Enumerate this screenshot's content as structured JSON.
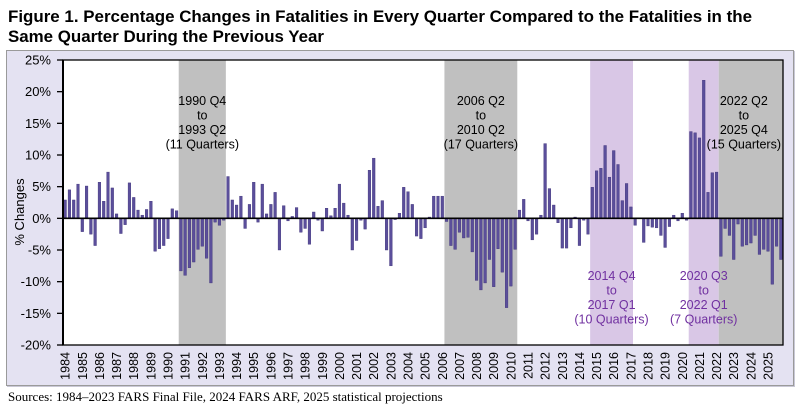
{
  "figure": {
    "title_line_1": "Figure 1. Percentage Changes in Fatalities in Every Quarter Compared to the Fatalities in the",
    "title_line_2": "Same Quarter During the Previous Year",
    "source": "Sources: 1984–2023 FARS Final File, 2024 FARS ARF, 2025 statistical projections"
  },
  "colors": {
    "panel_background": "#e4e2f2",
    "plot_background": "#ffffff",
    "bar": "#5b4f9b",
    "bar_edge": "#3d3178",
    "gray_shade": "#c0c0c0",
    "purple_shade": "#d9c7e6",
    "purple_text": "#7030a0",
    "axis": "#000000"
  },
  "chart_data": {
    "type": "bar",
    "title": "Figure 1. Percentage Changes in Fatalities in Every Quarter Compared to the Fatalities in the Same Quarter During the Previous Year",
    "xlabel": "",
    "ylabel": "% Changes",
    "ylim": [
      -20,
      25
    ],
    "yticks": [
      -20,
      -15,
      -10,
      -5,
      0,
      5,
      10,
      15,
      20,
      25
    ],
    "ytick_labels": [
      "-20%",
      "-15%",
      "-10%",
      "-5%",
      "0%",
      "5%",
      "10%",
      "15%",
      "20%",
      "25%"
    ],
    "xtick_labels": [
      "1984",
      "1985",
      "1986",
      "1987",
      "1988",
      "1989",
      "1990",
      "1991",
      "1992",
      "1993",
      "1994",
      "1995",
      "1996",
      "1997",
      "1998",
      "1999",
      "2000",
      "2001",
      "2002",
      "2003",
      "2004",
      "2005",
      "2006",
      "2007",
      "2008",
      "2009",
      "2010",
      "2011",
      "2012",
      "2013",
      "2014",
      "2015",
      "2016",
      "2017",
      "2018",
      "2019",
      "2020",
      "2021",
      "2022",
      "2023",
      "2024",
      "2025"
    ],
    "grid": false,
    "legend": "none",
    "categories": [
      "1984 Q1",
      "1984 Q2",
      "1984 Q3",
      "1984 Q4",
      "1985 Q1",
      "1985 Q2",
      "1985 Q3",
      "1985 Q4",
      "1986 Q1",
      "1986 Q2",
      "1986 Q3",
      "1986 Q4",
      "1987 Q1",
      "1987 Q2",
      "1987 Q3",
      "1987 Q4",
      "1988 Q1",
      "1988 Q2",
      "1988 Q3",
      "1988 Q4",
      "1989 Q1",
      "1989 Q2",
      "1989 Q3",
      "1989 Q4",
      "1990 Q1",
      "1990 Q2",
      "1990 Q3",
      "1990 Q4",
      "1991 Q1",
      "1991 Q2",
      "1991 Q3",
      "1991 Q4",
      "1992 Q1",
      "1992 Q2",
      "1992 Q3",
      "1992 Q4",
      "1993 Q1",
      "1993 Q2",
      "1993 Q3",
      "1993 Q4",
      "1994 Q1",
      "1994 Q2",
      "1994 Q3",
      "1994 Q4",
      "1995 Q1",
      "1995 Q2",
      "1995 Q3",
      "1995 Q4",
      "1996 Q1",
      "1996 Q2",
      "1996 Q3",
      "1996 Q4",
      "1997 Q1",
      "1997 Q2",
      "1997 Q3",
      "1997 Q4",
      "1998 Q1",
      "1998 Q2",
      "1998 Q3",
      "1998 Q4",
      "1999 Q1",
      "1999 Q2",
      "1999 Q3",
      "1999 Q4",
      "2000 Q1",
      "2000 Q2",
      "2000 Q3",
      "2000 Q4",
      "2001 Q1",
      "2001 Q2",
      "2001 Q3",
      "2001 Q4",
      "2002 Q1",
      "2002 Q2",
      "2002 Q3",
      "2002 Q4",
      "2003 Q1",
      "2003 Q2",
      "2003 Q3",
      "2003 Q4",
      "2004 Q1",
      "2004 Q2",
      "2004 Q3",
      "2004 Q4",
      "2005 Q1",
      "2005 Q2",
      "2005 Q3",
      "2005 Q4",
      "2006 Q1",
      "2006 Q2",
      "2006 Q3",
      "2006 Q4",
      "2007 Q1",
      "2007 Q2",
      "2007 Q3",
      "2007 Q4",
      "2008 Q1",
      "2008 Q2",
      "2008 Q3",
      "2008 Q4",
      "2009 Q1",
      "2009 Q2",
      "2009 Q3",
      "2009 Q4",
      "2010 Q1",
      "2010 Q2",
      "2010 Q3",
      "2010 Q4",
      "2011 Q1",
      "2011 Q2",
      "2011 Q3",
      "2011 Q4",
      "2012 Q1",
      "2012 Q2",
      "2012 Q3",
      "2012 Q4",
      "2013 Q1",
      "2013 Q2",
      "2013 Q3",
      "2013 Q4",
      "2014 Q1",
      "2014 Q2",
      "2014 Q3",
      "2014 Q4",
      "2015 Q1",
      "2015 Q2",
      "2015 Q3",
      "2015 Q4",
      "2016 Q1",
      "2016 Q2",
      "2016 Q3",
      "2016 Q4",
      "2017 Q1",
      "2017 Q2",
      "2017 Q3",
      "2017 Q4",
      "2018 Q1",
      "2018 Q2",
      "2018 Q3",
      "2018 Q4",
      "2019 Q1",
      "2019 Q2",
      "2019 Q3",
      "2019 Q4",
      "2020 Q1",
      "2020 Q2",
      "2020 Q3",
      "2020 Q4",
      "2021 Q1",
      "2021 Q2",
      "2021 Q3",
      "2021 Q4",
      "2022 Q1",
      "2022 Q2",
      "2022 Q3",
      "2022 Q4",
      "2023 Q1",
      "2023 Q2",
      "2023 Q3",
      "2023 Q4",
      "2024 Q1",
      "2024 Q2",
      "2024 Q3",
      "2024 Q4",
      "2025 Q1",
      "2025 Q2",
      "2025 Q3",
      "2025 Q4"
    ],
    "series": [
      {
        "name": "% Changes",
        "values": [
          2.9,
          4.5,
          2.9,
          5.4,
          -2.1,
          5.1,
          -2.5,
          -4.3,
          5.7,
          2.7,
          7.3,
          4.8,
          0.7,
          -2.4,
          -1.0,
          5.6,
          3.3,
          1.3,
          0.5,
          1.4,
          2.7,
          -5.2,
          -4.8,
          -4.3,
          -3.2,
          1.5,
          1.2,
          -8.3,
          -9.0,
          -7.8,
          -6.9,
          -4.9,
          -4.4,
          -6.3,
          -10.2,
          -0.6,
          -1.1,
          -0.3,
          6.6,
          2.9,
          2.1,
          3.5,
          -1.6,
          2.2,
          5.7,
          -0.6,
          5.4,
          0.7,
          2.2,
          4.1,
          -5.0,
          2.0,
          -0.4,
          0.3,
          1.7,
          -2.2,
          -1.6,
          -4.1,
          1.0,
          -0.3,
          -2.0,
          1.6,
          0.4,
          1.6,
          5.4,
          2.4,
          0.5,
          -5.0,
          -3.5,
          -0.3,
          -1.7,
          7.6,
          9.5,
          1.9,
          2.8,
          -5.0,
          -7.5,
          -0.2,
          0.8,
          4.9,
          4.2,
          2.2,
          -2.8,
          -3.2,
          -1.5,
          0.2,
          3.5,
          3.5,
          3.5,
          -0.5,
          -4.3,
          -4.9,
          -2.2,
          -3.1,
          -3.0,
          -5.3,
          -9.8,
          -11.3,
          -10.2,
          -6.5,
          -10.8,
          -4.8,
          -8.5,
          -14.1,
          -10.7,
          -4.9,
          1.3,
          3.0,
          -0.4,
          -3.4,
          -2.5,
          0.5,
          11.8,
          4.7,
          2.1,
          -0.7,
          -4.7,
          -4.7,
          -1.5,
          0.2,
          -4.3,
          -0.3,
          -2.5,
          4.9,
          7.5,
          7.9,
          11.5,
          6.5,
          10.7,
          8.5,
          2.8,
          5.5,
          1.8,
          -1.1,
          0.0,
          -3.8,
          -1.2,
          -1.4,
          -1.5,
          -2.7,
          -4.6,
          -1.3,
          0.5,
          -0.4,
          0.8,
          -0.3,
          13.7,
          13.5,
          12.7,
          21.8,
          4.1,
          7.2,
          7.3,
          -6.0,
          -1.6,
          -2.7,
          -6.5,
          -0.9,
          -4.4,
          -4.2,
          -3.9,
          -2.7,
          -5.7,
          -4.9,
          -5.2,
          -10.4,
          -4.4,
          -6.5
        ]
      }
    ],
    "shaded_periods": [
      {
        "start": "1990 Q4",
        "end": "1993 Q2",
        "label": [
          "1990 Q4",
          "to",
          "1993 Q2",
          "(11 Quarters)"
        ],
        "fill": "#c0c0c0",
        "text_color": "#000000",
        "label_position": "top"
      },
      {
        "start": "2006 Q2",
        "end": "2010 Q2",
        "label": [
          "2006 Q2",
          "to",
          "2010 Q2",
          "(17 Quarters)"
        ],
        "fill": "#c0c0c0",
        "text_color": "#000000",
        "label_position": "top"
      },
      {
        "start": "2014 Q4",
        "end": "2017 Q1",
        "label": [
          "2014 Q4",
          "to",
          "2017 Q1",
          "(10 Quarters)"
        ],
        "fill": "#d9c7e6",
        "text_color": "#7030a0",
        "label_position": "bottom"
      },
      {
        "start": "2020 Q3",
        "end": "2022 Q1",
        "label": [
          "2020 Q3",
          "to",
          "2022 Q1",
          "(7 Quarters)"
        ],
        "fill": "#d9c7e6",
        "text_color": "#7030a0",
        "label_position": "bottom"
      },
      {
        "start": "2022 Q2",
        "end": "2025 Q4",
        "label": [
          "2022 Q2",
          "to",
          "2025 Q4",
          "(15 Quarters)"
        ],
        "fill": "#c0c0c0",
        "text_color": "#000000",
        "label_position": "top"
      }
    ]
  }
}
